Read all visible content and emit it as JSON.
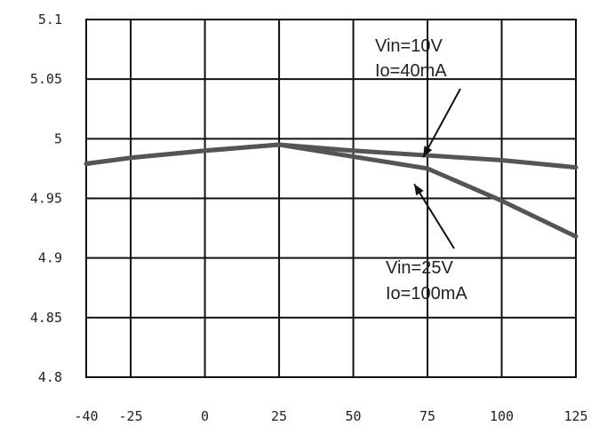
{
  "chart_data": {
    "type": "line",
    "title": "",
    "xlabel": "",
    "ylabel": "",
    "xlim": [
      -40,
      125
    ],
    "ylim": [
      4.8,
      5.1
    ],
    "grid": true,
    "x_ticks": [
      "-40",
      "-25",
      "0",
      "25",
      "50",
      "75",
      "100",
      "125"
    ],
    "x_tick_values": [
      -40,
      -25,
      0,
      25,
      50,
      75,
      100,
      125
    ],
    "y_ticks": [
      "5.1",
      "5.05",
      "5",
      "4.95",
      "4.9",
      "4.85",
      "4.8"
    ],
    "y_tick_values": [
      5.1,
      5.05,
      5.0,
      4.95,
      4.9,
      4.85,
      4.8
    ],
    "series": [
      {
        "x": [
          -40,
          -25,
          0,
          25,
          50,
          75,
          100,
          125
        ],
        "values": [
          4.979,
          4.984,
          4.99,
          4.995,
          4.99,
          4.986,
          4.982,
          4.976
        ]
      },
      {
        "x": [
          -40,
          -25,
          0,
          25,
          50,
          75,
          100,
          125
        ],
        "values": [
          4.979,
          4.984,
          4.99,
          4.995,
          4.985,
          4.975,
          4.948,
          4.918
        ]
      }
    ],
    "annotations": [
      {
        "lines": [
          "Vin=10V",
          "Io=40mA"
        ],
        "points_to_x": 90,
        "points_to_y": 4.983
      },
      {
        "lines": [
          "Vin=25V",
          "Io=100mA"
        ],
        "points_to_x": 90,
        "points_to_y": 4.962
      }
    ]
  }
}
